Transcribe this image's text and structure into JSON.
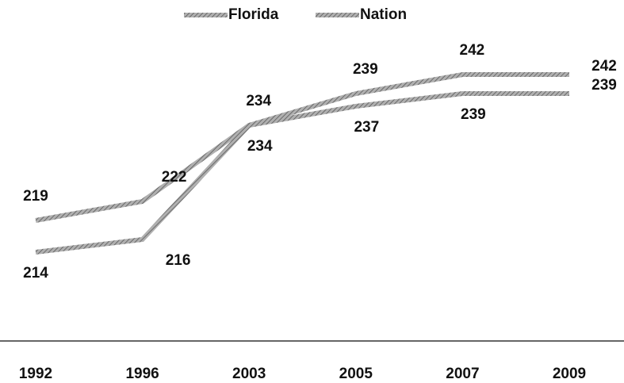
{
  "chart_data": {
    "type": "line",
    "categories": [
      "1992",
      "1996",
      "2003",
      "2005",
      "2007",
      "2009"
    ],
    "series": [
      {
        "name": "Florida",
        "color": "#8c8c8c",
        "values": [
          214,
          216,
          234,
          239,
          242,
          242
        ]
      },
      {
        "name": "Nation",
        "color": "#a6a6a6",
        "values": [
          219,
          222,
          234,
          237,
          239,
          239
        ]
      }
    ],
    "ylim": [
      200,
      250
    ],
    "legend": "top"
  }
}
